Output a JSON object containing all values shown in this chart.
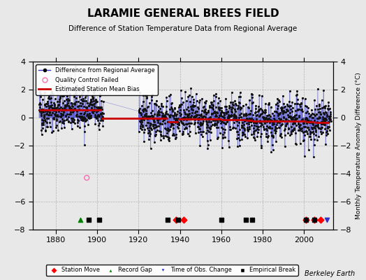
{
  "title": "LARAMIE GENERAL BREES FIELD",
  "subtitle": "Difference of Station Temperature Data from Regional Average",
  "ylabel_right": "Monthly Temperature Anomaly Difference (°C)",
  "credit": "Berkeley Earth",
  "xlim": [
    1869,
    2014
  ],
  "ylim": [
    -8,
    4
  ],
  "yticks": [
    -8,
    -6,
    -4,
    -2,
    0,
    2,
    4
  ],
  "xticks": [
    1880,
    1900,
    1920,
    1940,
    1960,
    1980,
    2000
  ],
  "background_color": "#e8e8e8",
  "plot_background": "#e8e8e8",
  "line_color": "#3333cc",
  "dot_color": "#111111",
  "bias_color": "#cc0000",
  "seed": 42,
  "station_moves": [
    1938,
    1942,
    2001,
    2005,
    2008
  ],
  "record_gaps": [
    1892
  ],
  "obs_changes": [
    2011
  ],
  "empirical_breaks": [
    1896,
    1901,
    1934,
    1939,
    1960,
    1972,
    1975,
    2001,
    2005
  ],
  "bias_segments": [
    {
      "start": 1872,
      "end": 1902,
      "bias": 0.55
    },
    {
      "start": 1902,
      "end": 1934,
      "bias": -0.05
    },
    {
      "start": 1934,
      "end": 1939,
      "bias": -0.3
    },
    {
      "start": 1939,
      "end": 1960,
      "bias": -0.1
    },
    {
      "start": 1960,
      "end": 1972,
      "bias": -0.15
    },
    {
      "start": 1972,
      "end": 1975,
      "bias": -0.2
    },
    {
      "start": 1975,
      "end": 2001,
      "bias": -0.25
    },
    {
      "start": 2001,
      "end": 2005,
      "bias": -0.3
    },
    {
      "start": 2005,
      "end": 2012,
      "bias": -0.35
    }
  ]
}
